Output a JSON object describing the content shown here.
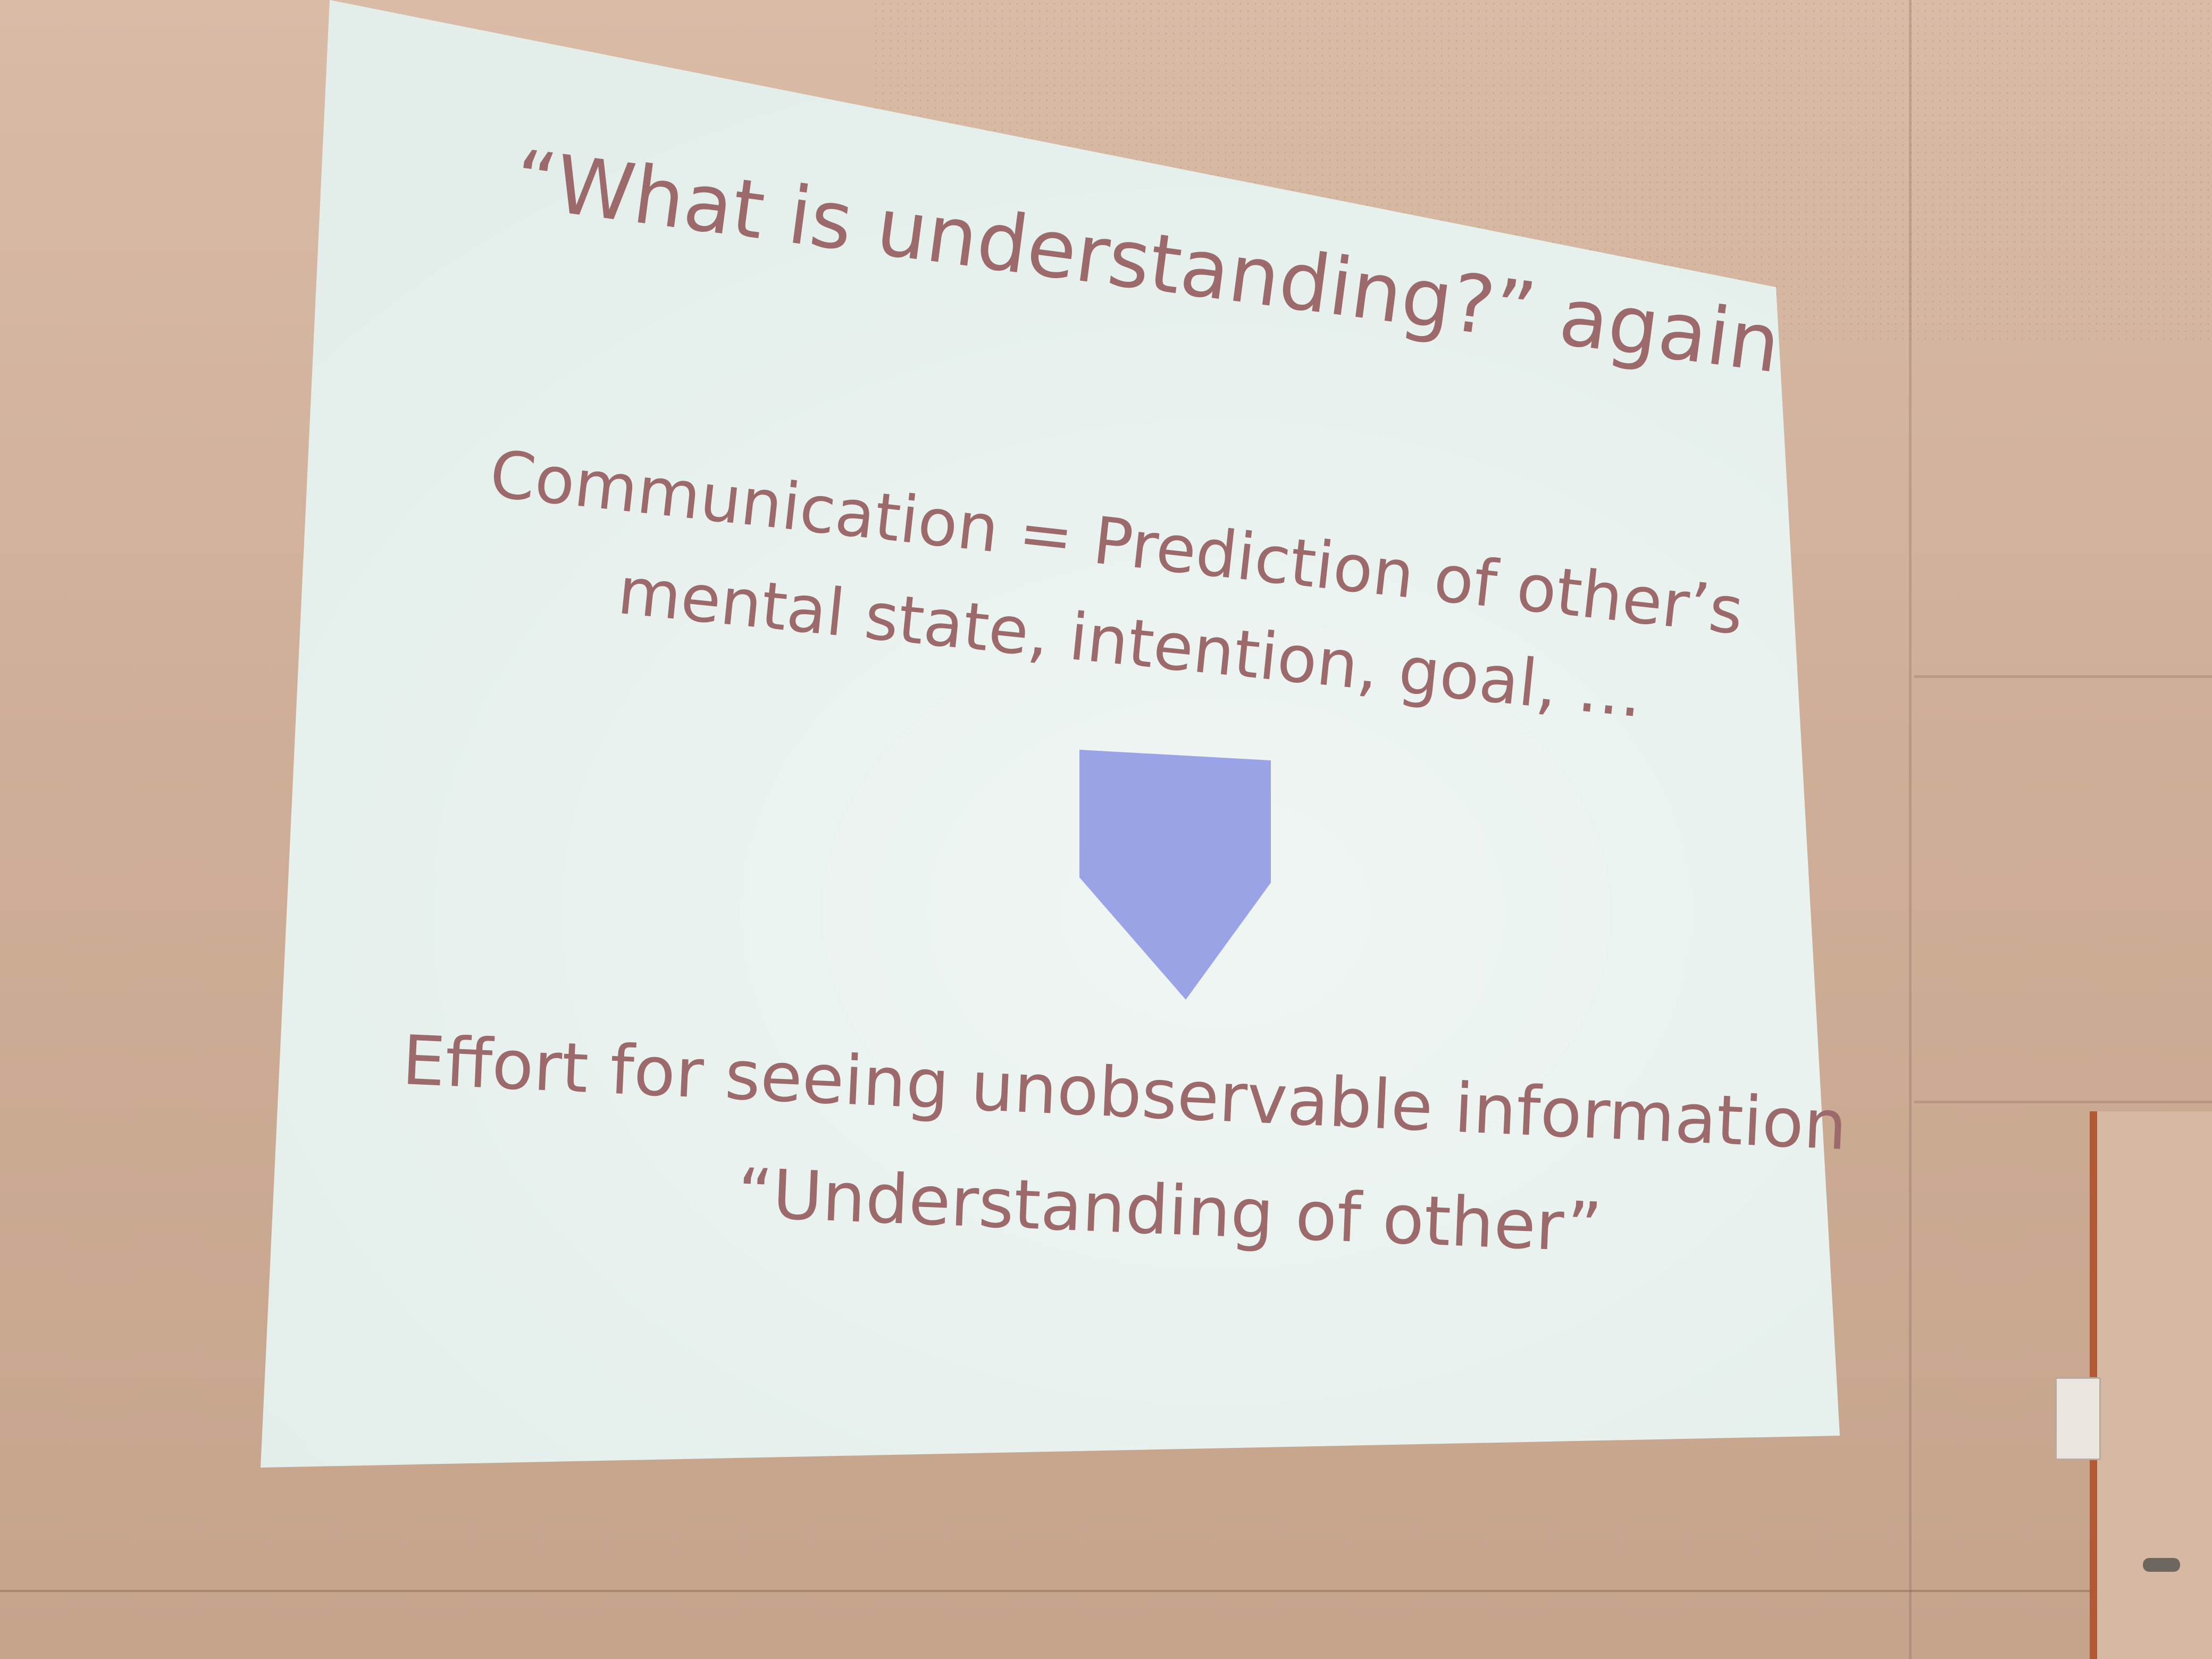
{
  "slide": {
    "title": "“What is understanding?” again",
    "line1": "Communication = Prediction of other’s",
    "line2": "mental state, intention, goal, …",
    "effort_line": "Effort for seeing unobservable information",
    "quote_line": "“Understanding of other”"
  },
  "colors": {
    "slide_background": "#e3eeea",
    "text": "#9c6a6a",
    "arrow": "#9aa3e6",
    "wall": "#d6b59e"
  },
  "icons": {
    "arrow": "down-pentagon-arrow"
  }
}
